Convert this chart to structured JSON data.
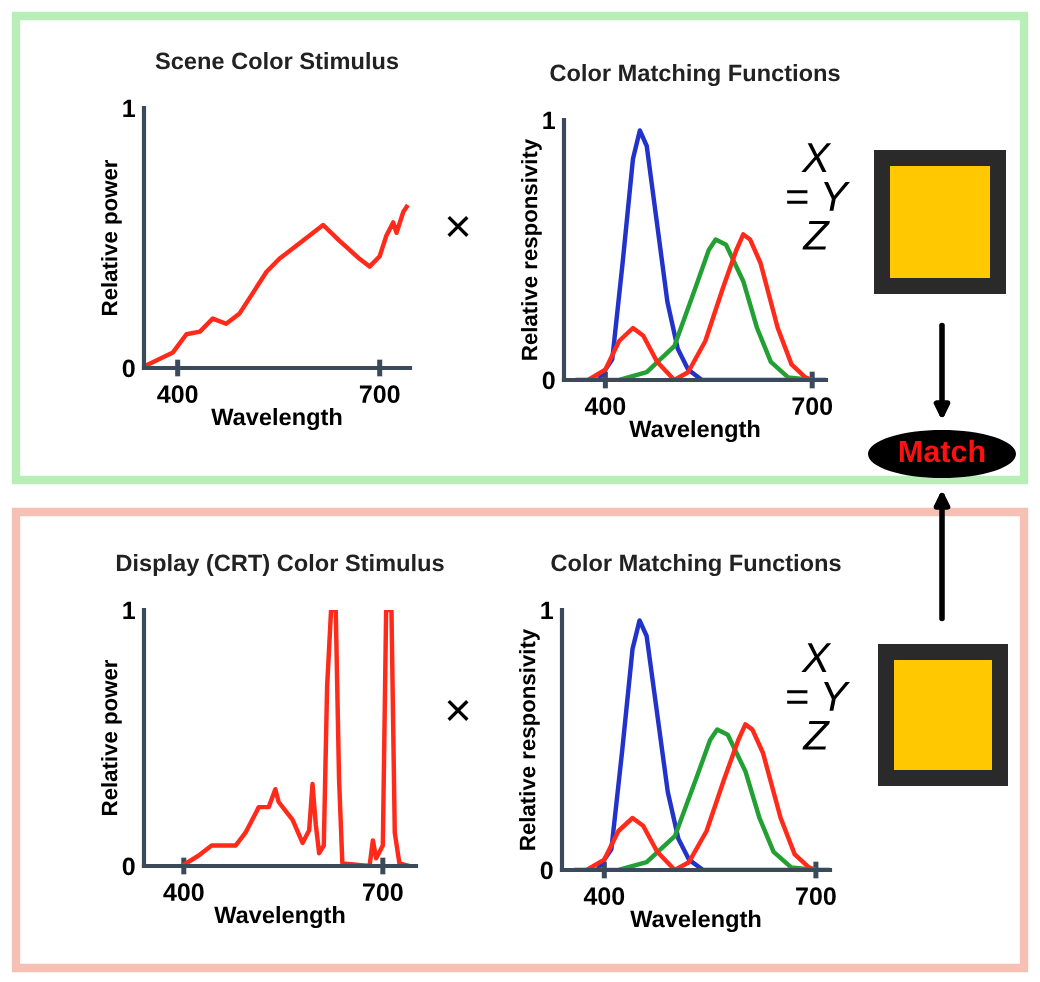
{
  "chart_data": [
    {
      "type": "line",
      "title": "Scene Color Stimulus",
      "xlabel": "Wavelength",
      "ylabel": "Relative power",
      "xlim": [
        350,
        745
      ],
      "ylim": [
        0,
        1
      ],
      "xticks": [
        400,
        700
      ],
      "yticks": [
        0,
        1
      ],
      "annotations": [
        "×"
      ],
      "series": [
        {
          "color": "#ff2a1a",
          "x": [
            353,
            393,
            413,
            433,
            452,
            472,
            492,
            512,
            532,
            551,
            581,
            616,
            640,
            670,
            685,
            700,
            710,
            720,
            725,
            735,
            740
          ],
          "values": [
            0.01,
            0.06,
            0.13,
            0.14,
            0.19,
            0.17,
            0.21,
            0.29,
            0.37,
            0.42,
            0.48,
            0.55,
            0.49,
            0.42,
            0.39,
            0.43,
            0.51,
            0.56,
            0.52,
            0.6,
            0.62
          ]
        }
      ]
    },
    {
      "type": "line",
      "title": "Color Matching Functions",
      "xlabel": "Wavelength",
      "ylabel": "Relative responsivity",
      "xlim": [
        340,
        720
      ],
      "ylim": [
        0,
        1
      ],
      "xticks": [
        400,
        700
      ],
      "yticks": [
        0,
        1
      ],
      "annotations": [
        "X\n= Y\nZ",
        "Match"
      ],
      "series": [
        {
          "color": "#2233cc",
          "x": [
            360,
            390,
            410,
            425,
            440,
            450,
            460,
            475,
            490,
            505,
            520,
            540,
            720
          ],
          "values": [
            0,
            0,
            0.08,
            0.45,
            0.85,
            0.96,
            0.9,
            0.6,
            0.3,
            0.12,
            0.04,
            0,
            0
          ]
        },
        {
          "color": "#22a033",
          "x": [
            390,
            420,
            460,
            500,
            530,
            550,
            560,
            575,
            600,
            620,
            640,
            665,
            700
          ],
          "values": [
            0,
            0,
            0.03,
            0.13,
            0.35,
            0.5,
            0.54,
            0.52,
            0.38,
            0.2,
            0.07,
            0.01,
            0
          ]
        },
        {
          "color": "#ff2a1a",
          "x": [
            375,
            400,
            420,
            440,
            455,
            475,
            500,
            520,
            545,
            570,
            590,
            600,
            610,
            625,
            650,
            670,
            690,
            700
          ],
          "values": [
            0,
            0.04,
            0.15,
            0.2,
            0.17,
            0.07,
            0,
            0.03,
            0.15,
            0.35,
            0.5,
            0.56,
            0.54,
            0.45,
            0.2,
            0.06,
            0.01,
            0
          ]
        }
      ]
    },
    {
      "type": "line",
      "title": "Display (CRT) Color Stimulus",
      "xlabel": "Wavelength",
      "ylabel": "Relative power",
      "xlim": [
        340,
        750
      ],
      "ylim": [
        0,
        1
      ],
      "xticks": [
        400,
        700
      ],
      "yticks": [
        0,
        1
      ],
      "annotations": [
        "×"
      ],
      "series": [
        {
          "color": "#ff2a1a",
          "x": [
            397,
            422,
            442,
            478,
            493,
            513,
            528,
            538,
            543,
            564,
            579,
            589,
            594,
            599,
            604,
            611,
            616,
            622,
            629,
            634,
            639,
            680,
            685,
            690,
            700,
            705,
            713,
            718,
            725,
            740
          ],
          "values": [
            0,
            0.04,
            0.08,
            0.08,
            0.13,
            0.23,
            0.23,
            0.3,
            0.25,
            0.18,
            0.09,
            0.14,
            0.32,
            0.16,
            0.05,
            0.08,
            0.7,
            1,
            1,
            0.34,
            0.01,
            0,
            0.1,
            0.03,
            0.08,
            1,
            1,
            0.13,
            0.01,
            0
          ]
        }
      ]
    },
    {
      "type": "line",
      "title": "Color Matching Functions",
      "xlabel": "Wavelength",
      "ylabel": "Relative responsivity",
      "xlim": [
        340,
        720
      ],
      "ylim": [
        0,
        1
      ],
      "xticks": [
        400,
        700
      ],
      "yticks": [
        0,
        1
      ],
      "annotations": [
        "X\n= Y\nZ"
      ],
      "series": [
        {
          "color": "#2233cc",
          "x": [
            360,
            390,
            410,
            425,
            440,
            450,
            460,
            475,
            490,
            505,
            520,
            540,
            720
          ],
          "values": [
            0,
            0,
            0.08,
            0.45,
            0.85,
            0.96,
            0.9,
            0.6,
            0.3,
            0.12,
            0.04,
            0,
            0
          ]
        },
        {
          "color": "#22a033",
          "x": [
            390,
            420,
            460,
            500,
            530,
            550,
            560,
            575,
            600,
            620,
            640,
            665,
            700
          ],
          "values": [
            0,
            0,
            0.03,
            0.13,
            0.35,
            0.5,
            0.54,
            0.52,
            0.38,
            0.2,
            0.07,
            0.01,
            0
          ]
        },
        {
          "color": "#ff2a1a",
          "x": [
            375,
            400,
            420,
            440,
            455,
            475,
            500,
            520,
            545,
            570,
            590,
            600,
            610,
            625,
            650,
            670,
            690,
            700
          ],
          "values": [
            0,
            0.04,
            0.15,
            0.2,
            0.17,
            0.07,
            0,
            0.03,
            0.15,
            0.35,
            0.5,
            0.56,
            0.54,
            0.45,
            0.2,
            0.06,
            0.01,
            0
          ]
        }
      ]
    }
  ]
}
